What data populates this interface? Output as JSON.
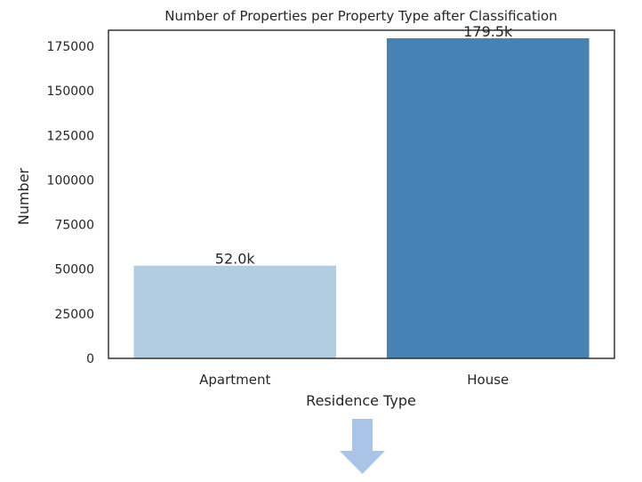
{
  "chart_data": {
    "type": "bar",
    "title": "Number of Properties per Property Type after Classification",
    "xlabel": "Residence Type",
    "ylabel": "Number",
    "categories": [
      "Apartment",
      "House"
    ],
    "values": [
      52000,
      179500
    ],
    "data_labels": [
      "52.0k",
      "179.5k"
    ],
    "bar_colors": [
      "#b3cde0",
      "#4682b4"
    ],
    "ylim": [
      0,
      184000
    ],
    "yticks": [
      "0",
      "25000",
      "50000",
      "75000",
      "100000",
      "125000",
      "150000",
      "175000"
    ],
    "ytick_values": [
      0,
      25000,
      50000,
      75000,
      100000,
      125000,
      150000,
      175000
    ],
    "grid": false,
    "legend": "none"
  },
  "decor": {
    "arrow_icon": "down-arrow-icon",
    "arrow_color": "#a9c4e6"
  }
}
